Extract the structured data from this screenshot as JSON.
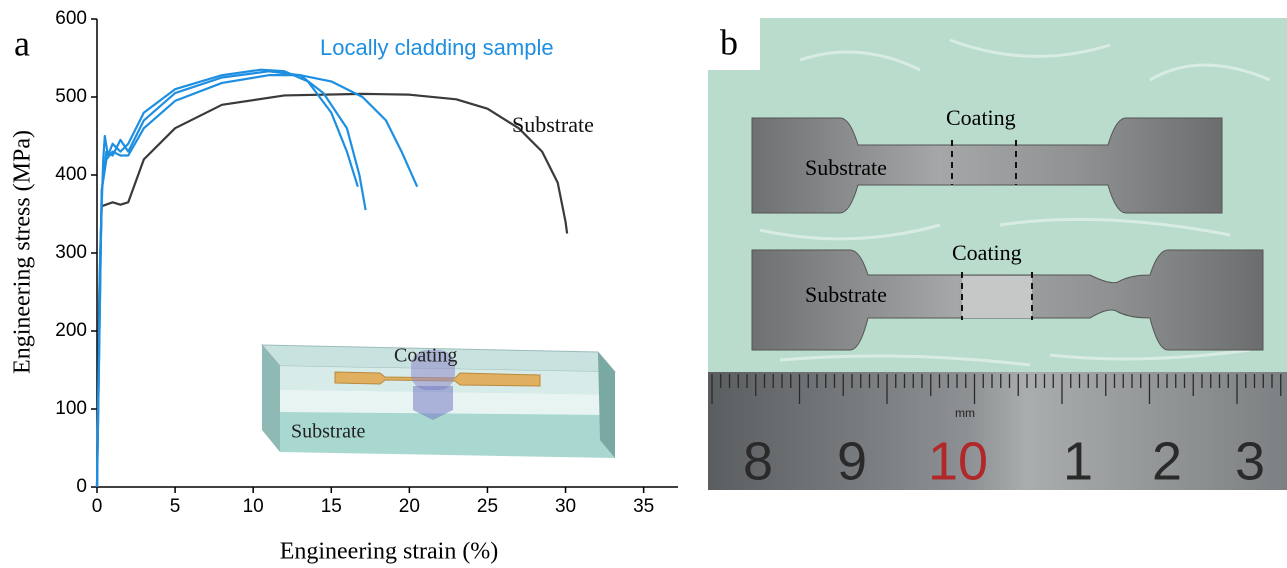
{
  "chart_data": {
    "type": "line",
    "panel_label": "a",
    "x_label": "Engineering strain (%)",
    "y_label": "Engineering stress (MPa)",
    "xlim": [
      0,
      37.2
    ],
    "ylim": [
      0,
      600
    ],
    "xticks": [
      0,
      5,
      10,
      15,
      20,
      25,
      30,
      35
    ],
    "yticks": [
      0,
      100,
      200,
      300,
      400,
      500,
      600
    ],
    "series": [
      {
        "name": "Substrate",
        "color": "#3a3a3a",
        "x": [
          0,
          0.15,
          0.3,
          1,
          1.5,
          2,
          3,
          5,
          8,
          12,
          17,
          20,
          23,
          25,
          27,
          28.5,
          29.5,
          30,
          30.1
        ],
        "values": [
          0,
          250,
          360,
          365,
          362,
          365,
          420,
          460,
          490,
          502,
          504,
          503,
          497,
          485,
          460,
          430,
          390,
          340,
          325
        ]
      },
      {
        "name": "Locally cladding sample",
        "color": "#1e8fe0",
        "x": [
          0,
          0.2,
          0.4,
          0.5,
          0.7,
          1,
          1.5,
          2,
          3,
          5,
          8,
          10.5,
          12,
          13.5,
          15,
          16,
          16.7
        ],
        "values": [
          0,
          300,
          420,
          450,
          425,
          440,
          430,
          440,
          480,
          510,
          528,
          535,
          533,
          520,
          480,
          430,
          385
        ]
      },
      {
        "color": "#1e8fe0",
        "x": [
          0,
          0.3,
          0.6,
          1,
          1.5,
          2,
          3,
          5,
          8,
          11,
          13,
          14.5,
          16,
          16.8,
          17.2
        ],
        "values": [
          0,
          380,
          430,
          425,
          445,
          430,
          470,
          505,
          525,
          533,
          528,
          505,
          460,
          400,
          355
        ]
      },
      {
        "color": "#1e8fe0",
        "x": [
          0,
          0.3,
          0.6,
          1,
          1.5,
          2,
          3,
          5,
          8,
          11,
          13,
          15,
          17,
          18.5,
          19.5,
          20.5
        ],
        "values": [
          0,
          380,
          420,
          430,
          425,
          425,
          460,
          495,
          518,
          528,
          528,
          520,
          500,
          470,
          430,
          385
        ]
      }
    ],
    "inset_labels": [
      "Coating",
      "Substrate"
    ]
  },
  "photo": {
    "panel_label": "b",
    "specimens": [
      {
        "coating": "Coating",
        "substrate": "Substrate"
      },
      {
        "coating": "Coating",
        "substrate": "Substrate"
      }
    ],
    "ruler": {
      "unit": "mm",
      "numbers": [
        "8",
        "9",
        "10",
        "1",
        "2",
        "3"
      ]
    }
  }
}
